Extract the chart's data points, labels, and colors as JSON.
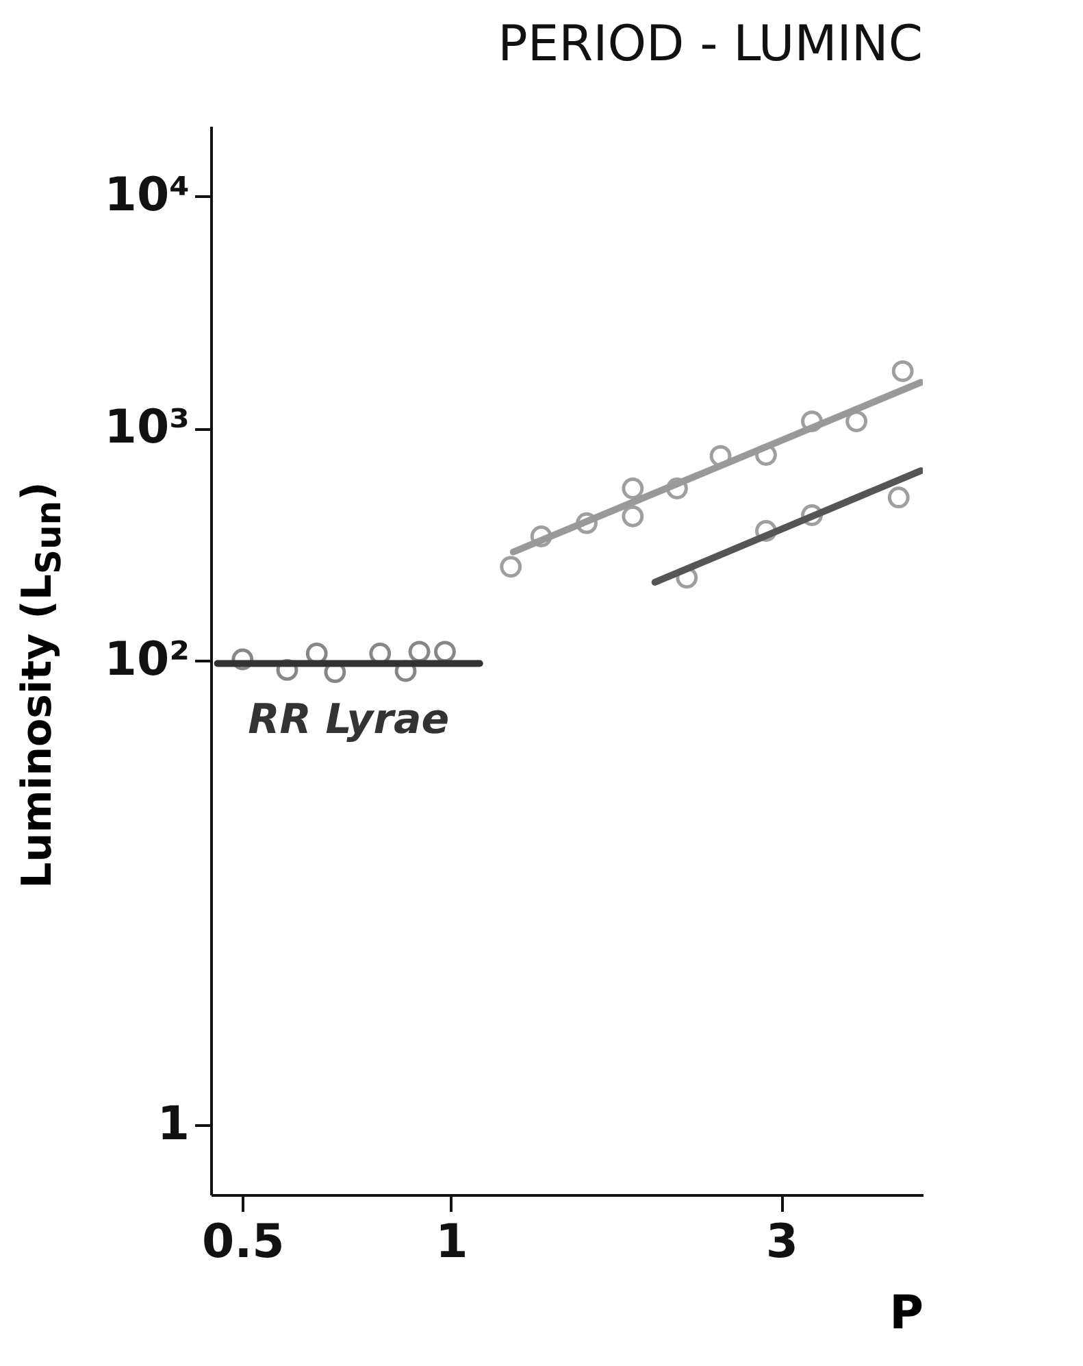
{
  "chart_data": {
    "type": "scatter",
    "title": "PERIOD - LUMINC",
    "xlabel": "P",
    "ylabel": "Luminosity (L$_{Sun}$)",
    "log": "xy",
    "grid": false,
    "xlim": [
      0.45,
      4.8
    ],
    "xticks": [
      0.5,
      1,
      3
    ],
    "ylim": [
      0.5,
      20000
    ],
    "yticks": [
      1,
      {
        "value": 100,
        "label": "10²"
      },
      {
        "value": 1000,
        "label": "10³"
      },
      {
        "value": 10000,
        "label": "10⁴"
      }
    ],
    "series": [
      {
        "marker": "circle",
        "color": "#555555",
        "x": [
          0.5,
          0.58,
          0.64,
          0.68,
          0.79,
          0.86,
          0.9,
          0.98
        ],
        "values": [
          101,
          91,
          107,
          89,
          107,
          90,
          109,
          109
        ]
      },
      {
        "type": "line",
        "marker": "none",
        "name": "RR Lyrae",
        "color": "#333333",
        "x": [
          0.46,
          1.1
        ],
        "values": [
          97,
          97
        ]
      },
      {
        "marker": "circle",
        "color": "#777777",
        "x": [
          1.22,
          1.35,
          1.57,
          1.83,
          1.83,
          2.12,
          2.45,
          2.85,
          3.32,
          3.85,
          4.49
        ],
        "values": [
          253,
          342,
          390,
          550,
          417,
          550,
          759,
          767,
          1070,
          1070,
          1760
        ]
      },
      {
        "type": "line",
        "marker": "none",
        "color": "#999999",
        "x": [
          1.23,
          4.77
        ],
        "values": [
          293,
          1575
        ]
      },
      {
        "marker": "circle",
        "color": "#777777",
        "x": [
          2.19,
          2.85,
          3.32,
          4.43
        ],
        "values": [
          227,
          361,
          422,
          503
        ]
      },
      {
        "type": "line",
        "marker": "none",
        "color": "#555555",
        "x": [
          1.97,
          4.77
        ],
        "values": [
          217,
          656
        ]
      }
    ]
  }
}
